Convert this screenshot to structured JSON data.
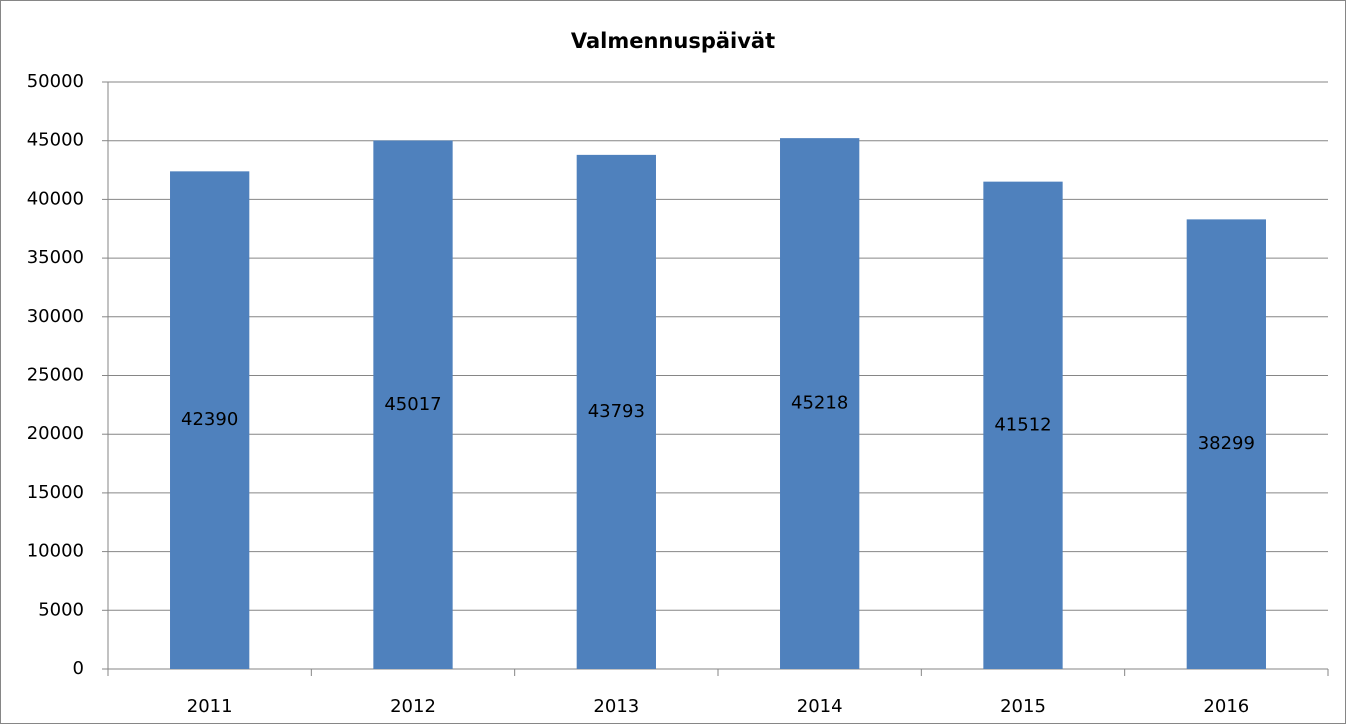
{
  "chart_data": {
    "type": "bar",
    "title": "Valmennuspäivät",
    "categories": [
      "2011",
      "2012",
      "2013",
      "2014",
      "2015",
      "2016"
    ],
    "values": [
      42390,
      45017,
      43793,
      45218,
      41512,
      38299
    ],
    "color": "#4f81bd",
    "ylim": [
      0,
      50000
    ],
    "yticks": [
      0,
      5000,
      10000,
      15000,
      20000,
      25000,
      30000,
      35000,
      40000,
      45000,
      50000
    ],
    "grid": true
  }
}
